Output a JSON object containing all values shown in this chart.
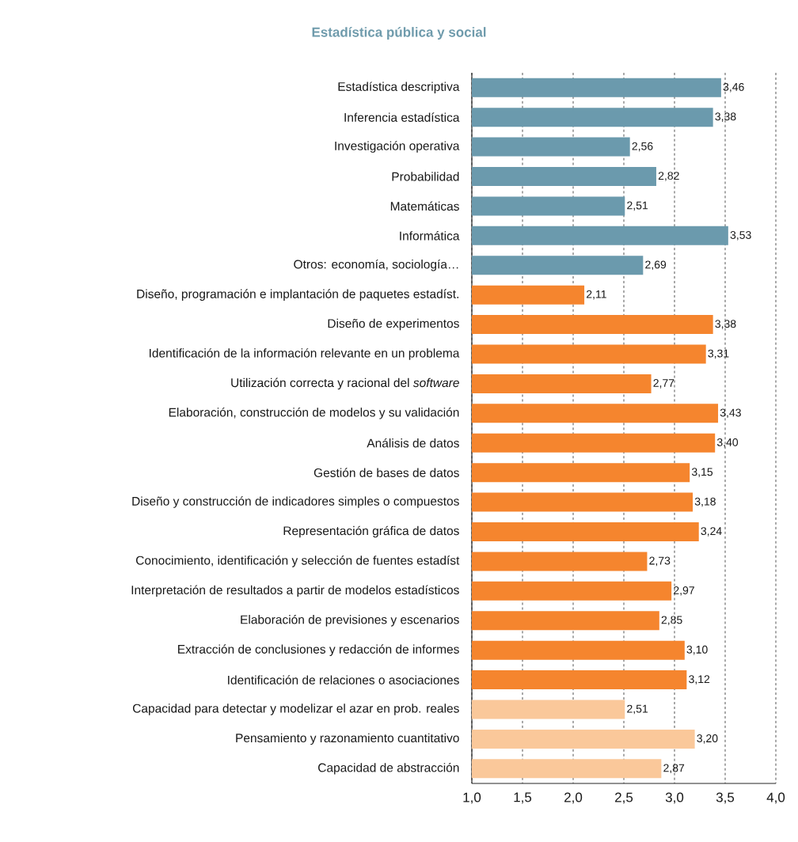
{
  "chart_data": {
    "type": "bar",
    "orientation": "horizontal",
    "title": "Estadística pública y social",
    "categories": [
      "Estadística descriptiva",
      "Inferencia estadística",
      "Investigación operativa",
      "Probabilidad",
      "Matemáticas",
      "Informática",
      "Otros: economía, sociología…",
      "Diseño, programación e implantación de paquetes estadíst.",
      "Diseño de experimentos",
      "Identificación de la información relevante en un problema",
      "Utilización correcta y racional del *software*",
      "Elaboración, construcción de modelos y su validación",
      "Análisis de datos",
      "Gestión de bases de datos",
      "Diseño y construcción de indicadores simples o compuestos",
      "Representación gráfica de datos",
      "Conocimiento, identificación y selección de fuentes estadíst",
      "Interpretación de resultados a partir de modelos estadísticos",
      "Elaboración de previsiones y escenarios",
      "Extracción de conclusiones y redacción de informes",
      "Identificación de relaciones o asociaciones",
      "Capacidad para detectar y modelizar el azar en prob. reales",
      "Pensamiento y razonamiento cuantitativo",
      "Capacidad de abstracción"
    ],
    "values": [
      3.46,
      3.38,
      2.56,
      2.82,
      2.51,
      3.53,
      2.69,
      2.11,
      3.38,
      3.31,
      2.77,
      3.43,
      3.4,
      3.15,
      3.18,
      3.24,
      2.73,
      2.97,
      2.85,
      3.1,
      3.12,
      2.51,
      3.2,
      2.87
    ],
    "value_labels": [
      "3,46",
      "3,38",
      "2,56",
      "2,82",
      "2,51",
      "3,53",
      "2,69",
      "2,11",
      "3,38",
      "3,31",
      "2,77",
      "3,43",
      "3,40",
      "3,15",
      "3,18",
      "3,24",
      "2,73",
      "2,97",
      "2,85",
      "3,10",
      "3,12",
      "2,51",
      "3,20",
      "2,87"
    ],
    "colors": [
      "#6b9aad",
      "#6b9aad",
      "#6b9aad",
      "#6b9aad",
      "#6b9aad",
      "#6b9aad",
      "#6b9aad",
      "#f5852e",
      "#f5852e",
      "#f5852e",
      "#f5852e",
      "#f5852e",
      "#f5852e",
      "#f5852e",
      "#f5852e",
      "#f5852e",
      "#f5852e",
      "#f5852e",
      "#f5852e",
      "#f5852e",
      "#f5852e",
      "#fac89a",
      "#fac89a",
      "#fac89a"
    ],
    "xlim": [
      1.0,
      4.0
    ],
    "xticks": [
      {
        "value": 1.0,
        "label": "1,0"
      },
      {
        "value": 1.5,
        "label": "1,5"
      },
      {
        "value": 2.0,
        "label": "2,0"
      },
      {
        "value": 2.5,
        "label": "2,5"
      },
      {
        "value": 3.0,
        "label": "3,0"
      },
      {
        "value": 3.5,
        "label": "3,5"
      },
      {
        "value": 4.0,
        "label": "4,0"
      }
    ],
    "grid": "x"
  }
}
